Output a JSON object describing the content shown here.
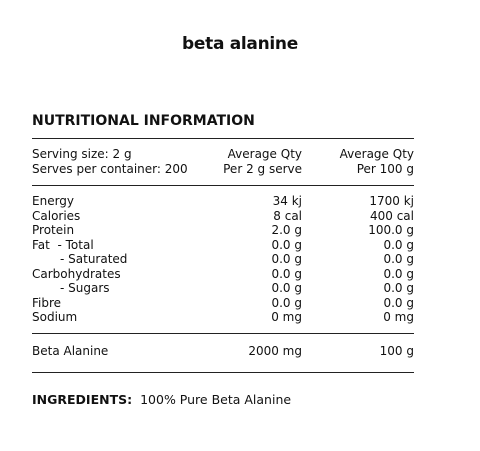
{
  "title": "beta alanine",
  "heading": "NUTRITIONAL INFORMATION",
  "header": {
    "rows": [
      [
        "Serving size: 2 g",
        "Average Qty",
        "Average Qty"
      ],
      [
        "Serves per container: 200",
        "Per 2 g serve",
        "Per 100 g"
      ]
    ]
  },
  "table": {
    "rows": [
      [
        "Energy",
        "34 kj",
        "1700 kj"
      ],
      [
        "Calories",
        "8 cal",
        "400 cal"
      ],
      [
        "Protein",
        "2.0 g",
        "100.0 g"
      ],
      [
        "Fat  - Total",
        "0.0 g",
        "0.0 g"
      ],
      [
        "- Saturated",
        "0.0 g",
        "0.0 g"
      ],
      [
        "Carbohydrates",
        "0.0 g",
        "0.0 g"
      ],
      [
        "- Sugars",
        "0.0 g",
        "0.0 g"
      ],
      [
        "Fibre",
        "0.0 g",
        "0.0 g"
      ],
      [
        "Sodium",
        "0 mg",
        "0 mg"
      ]
    ]
  },
  "active": [
    "Beta Alanine",
    "2000 mg",
    "100 g"
  ],
  "ingredients": {
    "label": "INGREDIENTS:",
    "text": "100% Pure Beta Alanine"
  }
}
